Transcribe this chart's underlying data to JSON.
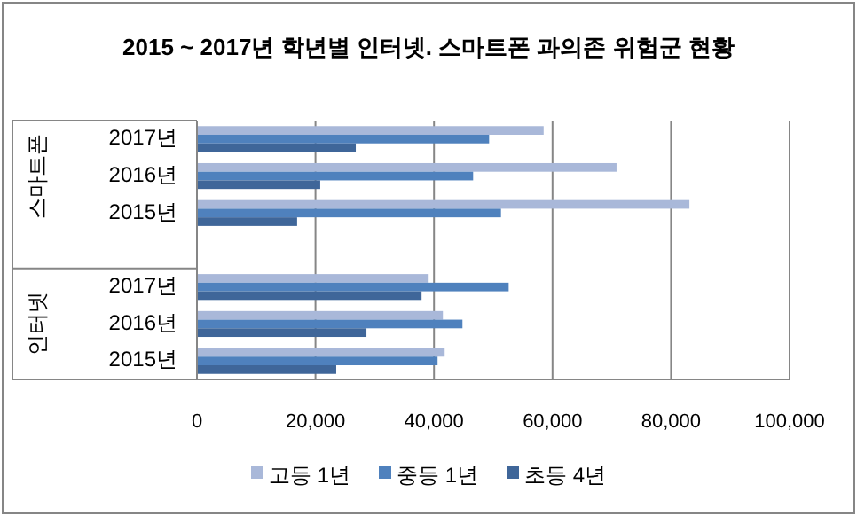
{
  "chart_data": {
    "type": "bar",
    "orientation": "horizontal",
    "title": "2015 ~ 2017년 학년별 인터넷. 스마트폰 과의존 위험군 현황",
    "categories": [
      "2017년",
      "2016년",
      "2015년",
      "2017년",
      "2016년",
      "2015년"
    ],
    "series": [
      {
        "name": "고등 1년",
        "color": "#a9b8d9",
        "values": [
          58500,
          70800,
          83100,
          39100,
          41500,
          41800
        ]
      },
      {
        "name": "중등 1년",
        "color": "#4f81bd",
        "values": [
          49300,
          46600,
          51300,
          52600,
          44800,
          40600
        ]
      },
      {
        "name": "초등 4년",
        "color": "#3f6699",
        "values": [
          26800,
          20800,
          16900,
          37900,
          28600,
          23500
        ]
      }
    ],
    "xlim": [
      0,
      100000
    ],
    "xticks": [
      {
        "value": 0,
        "label": "0"
      },
      {
        "value": 20000,
        "label": "20,000"
      },
      {
        "value": 40000,
        "label": "40,000"
      },
      {
        "value": 60000,
        "label": "60,000"
      },
      {
        "value": 80000,
        "label": "80,000"
      },
      {
        "value": 100000,
        "label": "100,000"
      }
    ],
    "grid": "x",
    "legend": "bottom",
    "annotations": [
      "스마트폰",
      "인터넷"
    ]
  }
}
